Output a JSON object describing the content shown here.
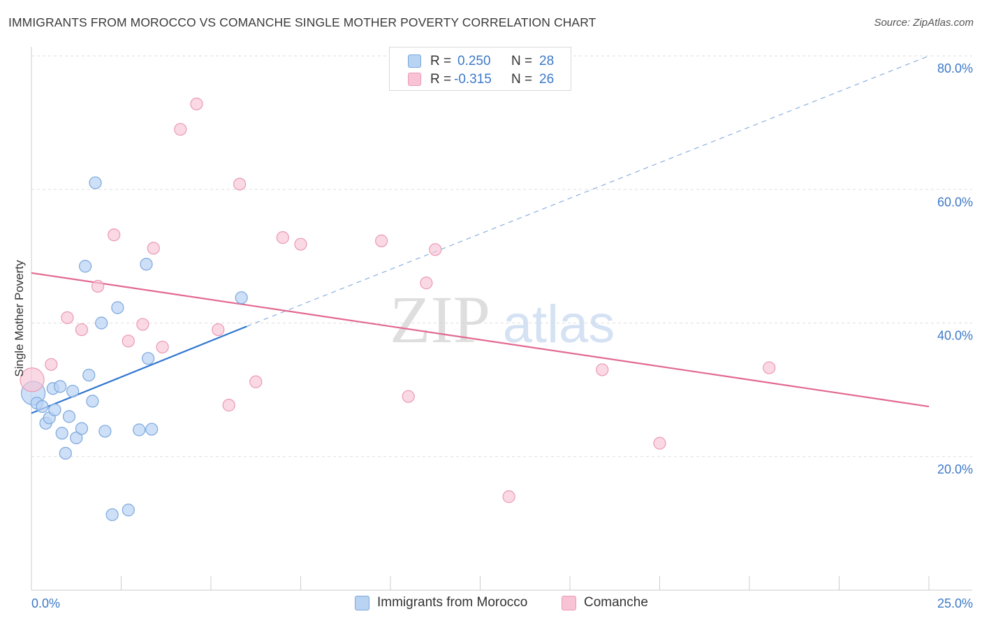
{
  "header": {
    "title": "IMMIGRANTS FROM MOROCCO VS COMANCHE SINGLE MOTHER POVERTY CORRELATION CHART",
    "source": "Source: ZipAtlas.com"
  },
  "watermark": {
    "zip": "ZIP",
    "atlas": "atlas"
  },
  "colors": {
    "blue_fill": "#b9d3f3",
    "blue_stroke": "#7ba7dd",
    "blue_line": "#2f76d0",
    "pink_fill": "#f8c4d5",
    "pink_stroke": "#eb99b3",
    "pink_line": "#e2698f",
    "tick_label": "#3d79c8",
    "grid": "#dddddd"
  },
  "legend": {
    "rows": [
      {
        "r_label": "R =",
        "r_value": "0.250",
        "n_label": "N =",
        "n_value": "28"
      },
      {
        "r_label": "R =",
        "r_value": "-0.315",
        "n_label": "N =",
        "n_value": "26"
      }
    ]
  },
  "bottom_legend": [
    {
      "label": "Immigrants from Morocco"
    },
    {
      "label": "Comanche"
    }
  ],
  "chart_data": {
    "type": "scatter",
    "title": "IMMIGRANTS FROM MOROCCO VS COMANCHE SINGLE MOTHER POVERTY CORRELATION CHART",
    "xlabel": "",
    "ylabel": "Single Mother Poverty",
    "xlim": [
      0,
      25
    ],
    "ylim": [
      0,
      80
    ],
    "x_tick_labels": [
      "0.0%",
      "25.0%"
    ],
    "y_ticks": [
      20,
      40,
      60,
      80
    ],
    "y_tick_labels": [
      "20.0%",
      "40.0%",
      "60.0%",
      "80.0%"
    ],
    "grid": true,
    "legend_position": "top-center",
    "series": [
      {
        "name": "Immigrants from Morocco",
        "r": 0.25,
        "n": 28,
        "trend": {
          "x0": 0,
          "y0": 26.5,
          "x1": 6.0,
          "y1": 39.5,
          "dash_to_x": 25,
          "dash_to_y": 80
        },
        "points": [
          {
            "x": 0.05,
            "y": 29.5,
            "s": 2
          },
          {
            "x": 0.15,
            "y": 28.0
          },
          {
            "x": 0.3,
            "y": 27.5
          },
          {
            "x": 0.4,
            "y": 25.0
          },
          {
            "x": 0.5,
            "y": 25.8
          },
          {
            "x": 0.6,
            "y": 30.2
          },
          {
            "x": 0.65,
            "y": 27.0
          },
          {
            "x": 0.8,
            "y": 30.5
          },
          {
            "x": 0.85,
            "y": 23.5
          },
          {
            "x": 0.95,
            "y": 20.5
          },
          {
            "x": 1.05,
            "y": 26.0
          },
          {
            "x": 1.15,
            "y": 29.8
          },
          {
            "x": 1.25,
            "y": 22.8
          },
          {
            "x": 1.4,
            "y": 24.2
          },
          {
            "x": 1.5,
            "y": 48.5
          },
          {
            "x": 1.6,
            "y": 32.2
          },
          {
            "x": 1.7,
            "y": 28.3
          },
          {
            "x": 1.78,
            "y": 61.0
          },
          {
            "x": 1.95,
            "y": 40.0
          },
          {
            "x": 2.05,
            "y": 23.8
          },
          {
            "x": 2.25,
            "y": 11.3
          },
          {
            "x": 2.4,
            "y": 42.3
          },
          {
            "x": 2.7,
            "y": 12.0
          },
          {
            "x": 3.0,
            "y": 24.0
          },
          {
            "x": 3.2,
            "y": 48.8
          },
          {
            "x": 3.25,
            "y": 34.7
          },
          {
            "x": 3.35,
            "y": 24.1
          },
          {
            "x": 5.85,
            "y": 43.8
          }
        ]
      },
      {
        "name": "Comanche",
        "r": -0.315,
        "n": 26,
        "trend": {
          "x0": 0,
          "y0": 47.5,
          "x1": 25,
          "y1": 27.5
        },
        "points": [
          {
            "x": 0.02,
            "y": 31.5,
            "s": 2
          },
          {
            "x": 0.55,
            "y": 33.8
          },
          {
            "x": 1.0,
            "y": 40.8
          },
          {
            "x": 1.4,
            "y": 39.0
          },
          {
            "x": 1.85,
            "y": 45.5
          },
          {
            "x": 2.3,
            "y": 53.2
          },
          {
            "x": 2.7,
            "y": 37.3
          },
          {
            "x": 3.1,
            "y": 39.8
          },
          {
            "x": 3.4,
            "y": 51.2
          },
          {
            "x": 3.65,
            "y": 36.4
          },
          {
            "x": 4.15,
            "y": 69.0
          },
          {
            "x": 4.6,
            "y": 72.8
          },
          {
            "x": 5.2,
            "y": 39.0
          },
          {
            "x": 5.5,
            "y": 27.7
          },
          {
            "x": 5.8,
            "y": 60.8
          },
          {
            "x": 6.25,
            "y": 31.2
          },
          {
            "x": 7.0,
            "y": 52.8
          },
          {
            "x": 7.5,
            "y": 51.8
          },
          {
            "x": 9.75,
            "y": 52.3
          },
          {
            "x": 10.5,
            "y": 29.0
          },
          {
            "x": 11.0,
            "y": 46.0
          },
          {
            "x": 11.25,
            "y": 51.0
          },
          {
            "x": 13.3,
            "y": 14.0
          },
          {
            "x": 15.9,
            "y": 33.0
          },
          {
            "x": 17.5,
            "y": 22.0
          },
          {
            "x": 20.55,
            "y": 33.3
          }
        ]
      }
    ]
  }
}
